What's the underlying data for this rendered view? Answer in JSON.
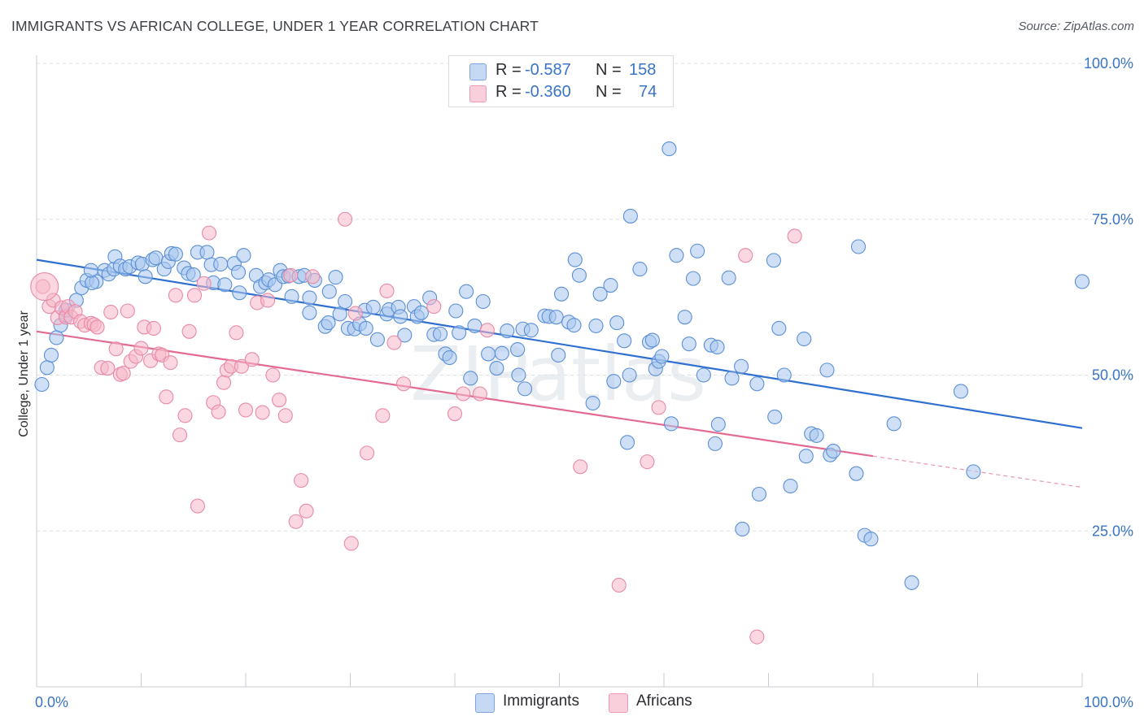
{
  "title": "IMMIGRANTS VS AFRICAN COLLEGE, UNDER 1 YEAR CORRELATION CHART",
  "source": "Source: ZipAtlas.com",
  "watermark": "ZIPatlas",
  "legend": {
    "rows": [
      {
        "r_label": "R = ",
        "r_value": "-0.587",
        "n_label": "N = ",
        "n_value": "158",
        "color": "#a8c6ee"
      },
      {
        "r_label": "R = ",
        "r_value": "-0.360",
        "n_label": "N = ",
        "n_value": "74",
        "color": "#f5b6c8"
      }
    ]
  },
  "bottom_legend": [
    {
      "label": "Immigrants",
      "color": "#a8c6ee"
    },
    {
      "label": "Africans",
      "color": "#f5b6c8"
    }
  ],
  "chart_data": {
    "type": "scatter",
    "title": "IMMIGRANTS VS AFRICAN COLLEGE, UNDER 1 YEAR CORRELATION CHART",
    "xlabel": "",
    "ylabel": "College, Under 1 year",
    "xlim": [
      0,
      100
    ],
    "ylim": [
      0,
      100
    ],
    "x_tick_labels": [
      {
        "value": 0,
        "label": "0.0%"
      },
      {
        "value": 100,
        "label": "100.0%"
      }
    ],
    "y_tick_labels": [
      {
        "value": 25,
        "label": "25.0%"
      },
      {
        "value": 50,
        "label": "50.0%"
      },
      {
        "value": 75,
        "label": "75.0%"
      },
      {
        "value": 100,
        "label": "100.0%"
      }
    ],
    "grid": true,
    "legend_position": "top-center",
    "series": [
      {
        "name": "Immigrants",
        "color": "#5b8fd6",
        "fill": "#a8c6ee",
        "trend": {
          "x": [
            0,
            100
          ],
          "y": [
            68.5,
            41.5
          ],
          "color": "#2f6fd0"
        },
        "points": [
          [
            0.5,
            48.5
          ],
          [
            1,
            51.2
          ],
          [
            1.4,
            53.2
          ],
          [
            1.9,
            56
          ],
          [
            2.3,
            58
          ],
          [
            2.8,
            59.6
          ],
          [
            2.8,
            60.4
          ],
          [
            3.8,
            62
          ],
          [
            4.3,
            64
          ],
          [
            4.8,
            65.2
          ],
          [
            5.7,
            65
          ],
          [
            5.3,
            64.8
          ],
          [
            5.2,
            66.8
          ],
          [
            6.5,
            66.8
          ],
          [
            6.9,
            66.2
          ],
          [
            7.4,
            67
          ],
          [
            7.5,
            69
          ],
          [
            8,
            67.5
          ],
          [
            8.5,
            67
          ],
          [
            8.9,
            67.4
          ],
          [
            9.7,
            68
          ],
          [
            10.1,
            67.8
          ],
          [
            10.4,
            65.8
          ],
          [
            11.1,
            68.5
          ],
          [
            11.4,
            68.8
          ],
          [
            12.2,
            67
          ],
          [
            12.6,
            68.2
          ],
          [
            12.9,
            69.5
          ],
          [
            13.3,
            69.4
          ],
          [
            14.1,
            67.2
          ],
          [
            14.5,
            66.3
          ],
          [
            15,
            66.1
          ],
          [
            15.4,
            69.7
          ],
          [
            16.3,
            69.7
          ],
          [
            16.7,
            67.7
          ],
          [
            16.9,
            64.8
          ],
          [
            17.6,
            67.8
          ],
          [
            18,
            64.5
          ],
          [
            18.9,
            67.9
          ],
          [
            19.3,
            66.5
          ],
          [
            19.4,
            63.2
          ],
          [
            19.8,
            69.2
          ],
          [
            21,
            66
          ],
          [
            21.4,
            64.2
          ],
          [
            21.9,
            64.8
          ],
          [
            22.2,
            65.3
          ],
          [
            22.8,
            64.5
          ],
          [
            23.3,
            66.8
          ],
          [
            23.6,
            65.8
          ],
          [
            24.1,
            65.9
          ],
          [
            24.4,
            62.6
          ],
          [
            25.1,
            65.8
          ],
          [
            25.6,
            66
          ],
          [
            26.1,
            62.4
          ],
          [
            26.1,
            60
          ],
          [
            26.6,
            65.2
          ],
          [
            27.6,
            57.8
          ],
          [
            27.9,
            58.4
          ],
          [
            28,
            63.4
          ],
          [
            28.6,
            65.7
          ],
          [
            29,
            59.8
          ],
          [
            29.5,
            61.8
          ],
          [
            29.8,
            57.5
          ],
          [
            30.4,
            57.4
          ],
          [
            30.9,
            58.2
          ],
          [
            31.4,
            60.4
          ],
          [
            31.5,
            57.5
          ],
          [
            32.2,
            60.9
          ],
          [
            32.6,
            55.7
          ],
          [
            33.5,
            59.8
          ],
          [
            33.7,
            60.5
          ],
          [
            34.6,
            60.9
          ],
          [
            34.8,
            59.4
          ],
          [
            35.2,
            56.4
          ],
          [
            36.1,
            61
          ],
          [
            36.4,
            59.4
          ],
          [
            36.8,
            60
          ],
          [
            37.6,
            62.4
          ],
          [
            38,
            56.5
          ],
          [
            38.6,
            56.6
          ],
          [
            39.1,
            53.4
          ],
          [
            39.5,
            52.8
          ],
          [
            40.1,
            60.3
          ],
          [
            40.4,
            56.8
          ],
          [
            41.1,
            63.4
          ],
          [
            41.5,
            49.5
          ],
          [
            41.9,
            57.9
          ],
          [
            42.7,
            61.8
          ],
          [
            43.2,
            53.4
          ],
          [
            44,
            51.1
          ],
          [
            44.5,
            53.5
          ],
          [
            45,
            57.1
          ],
          [
            46,
            54.1
          ],
          [
            46.1,
            50
          ],
          [
            46.5,
            57.4
          ],
          [
            46.7,
            47.8
          ],
          [
            47.3,
            57.2
          ],
          [
            48.6,
            59.5
          ],
          [
            49,
            59.4
          ],
          [
            49.7,
            59.3
          ],
          [
            49.9,
            53.2
          ],
          [
            50.2,
            63
          ],
          [
            50.9,
            58.5
          ],
          [
            51.4,
            58
          ],
          [
            51.5,
            68.5
          ],
          [
            51.9,
            66
          ],
          [
            53.2,
            45.5
          ],
          [
            53.5,
            57.9
          ],
          [
            53.9,
            63
          ],
          [
            54.9,
            64.4
          ],
          [
            55.2,
            49
          ],
          [
            55.5,
            58.4
          ],
          [
            56.2,
            55.5
          ],
          [
            56.5,
            39.2
          ],
          [
            56.7,
            50
          ],
          [
            56.8,
            75.5
          ],
          [
            57.7,
            67
          ],
          [
            58.6,
            55.3
          ],
          [
            58.9,
            55.6
          ],
          [
            59.2,
            51
          ],
          [
            59.5,
            52.2
          ],
          [
            59.8,
            53
          ],
          [
            60.5,
            86.3
          ],
          [
            60.7,
            42.2
          ],
          [
            61.2,
            69.2
          ],
          [
            62,
            59.3
          ],
          [
            62.4,
            55
          ],
          [
            62.8,
            65.5
          ],
          [
            63.2,
            69.9
          ],
          [
            63.8,
            50
          ],
          [
            64.5,
            54.8
          ],
          [
            64.9,
            39
          ],
          [
            65.1,
            54.5
          ],
          [
            65.2,
            42.1
          ],
          [
            66.2,
            65.6
          ],
          [
            66.5,
            49.5
          ],
          [
            67.4,
            51.4
          ],
          [
            67.5,
            25.3
          ],
          [
            68.9,
            48.6
          ],
          [
            69.1,
            30.9
          ],
          [
            70.5,
            68.4
          ],
          [
            70.6,
            43.3
          ],
          [
            71,
            57.5
          ],
          [
            71.5,
            50
          ],
          [
            72.1,
            32.2
          ],
          [
            73.4,
            55.8
          ],
          [
            73.6,
            37
          ],
          [
            74.1,
            40.6
          ],
          [
            74.6,
            40.3
          ],
          [
            75.6,
            50.8
          ],
          [
            75.9,
            37.2
          ],
          [
            76.2,
            37.8
          ],
          [
            78.4,
            34.2
          ],
          [
            78.6,
            70.6
          ],
          [
            79.2,
            24.3
          ],
          [
            79.8,
            23.7
          ],
          [
            82,
            42.2
          ],
          [
            83.7,
            16.7
          ],
          [
            88.4,
            47.4
          ],
          [
            89.6,
            34.5
          ],
          [
            100,
            65
          ]
        ]
      },
      {
        "name": "Africans",
        "color": "#e88aa6",
        "fill": "#f5b6c8",
        "trend": {
          "x": [
            0,
            80
          ],
          "y": [
            57,
            37
          ],
          "color": "#e36a90",
          "dashed_extension": {
            "x": [
              80,
              100
            ],
            "y": [
              37,
              32
            ]
          }
        },
        "points": [
          [
            0.6,
            64.2
          ],
          [
            1.2,
            61
          ],
          [
            1.6,
            62
          ],
          [
            2,
            59.2
          ],
          [
            2.4,
            60.8
          ],
          [
            2.8,
            59.3
          ],
          [
            3,
            61
          ],
          [
            3.3,
            59.3
          ],
          [
            3.7,
            60.2
          ],
          [
            4.2,
            58.6
          ],
          [
            4.6,
            58
          ],
          [
            5.2,
            58.3
          ],
          [
            5.5,
            58.1
          ],
          [
            5.8,
            57.7
          ],
          [
            6.2,
            51.2
          ],
          [
            6.8,
            51.1
          ],
          [
            7.1,
            60.1
          ],
          [
            7.6,
            54.2
          ],
          [
            8,
            50.1
          ],
          [
            8.3,
            50.3
          ],
          [
            8.7,
            60.3
          ],
          [
            9,
            52.2
          ],
          [
            9.5,
            53
          ],
          [
            10,
            54.3
          ],
          [
            10.3,
            57.7
          ],
          [
            10.9,
            52.3
          ],
          [
            11.2,
            57.5
          ],
          [
            11.7,
            53.4
          ],
          [
            12,
            53.2
          ],
          [
            12.4,
            46.5
          ],
          [
            12.8,
            52
          ],
          [
            13.3,
            62.8
          ],
          [
            13.7,
            40.4
          ],
          [
            14.2,
            43.5
          ],
          [
            14.6,
            57
          ],
          [
            15.1,
            62.8
          ],
          [
            15.4,
            29
          ],
          [
            16,
            64.7
          ],
          [
            16.5,
            72.8
          ],
          [
            16.9,
            45.6
          ],
          [
            17.4,
            44.1
          ],
          [
            17.9,
            48.8
          ],
          [
            18.2,
            50.8
          ],
          [
            18.6,
            51.4
          ],
          [
            19.1,
            56.8
          ],
          [
            19.6,
            51.4
          ],
          [
            20,
            44.4
          ],
          [
            20.6,
            52.5
          ],
          [
            21.1,
            61.6
          ],
          [
            21.6,
            44
          ],
          [
            22.1,
            62
          ],
          [
            22.6,
            50
          ],
          [
            23.2,
            46
          ],
          [
            23.8,
            43.5
          ],
          [
            24.3,
            66
          ],
          [
            24.8,
            26.5
          ],
          [
            25.3,
            33.1
          ],
          [
            25.8,
            28.2
          ],
          [
            26.4,
            65.8
          ],
          [
            29.5,
            75
          ],
          [
            30.1,
            23
          ],
          [
            30.5,
            59.9
          ],
          [
            31.6,
            37.5
          ],
          [
            33.1,
            43.5
          ],
          [
            33.5,
            63.5
          ],
          [
            34.2,
            55.2
          ],
          [
            35.1,
            48.6
          ],
          [
            38,
            61
          ],
          [
            40,
            43.8
          ],
          [
            40.8,
            47
          ],
          [
            42.4,
            47
          ],
          [
            43.1,
            57.2
          ],
          [
            52,
            35.3
          ],
          [
            55.7,
            16.3
          ],
          [
            58.4,
            36.1
          ],
          [
            59.5,
            44.8
          ],
          [
            67.8,
            69.2
          ],
          [
            68.9,
            8
          ],
          [
            72.5,
            72.3
          ]
        ]
      }
    ]
  }
}
